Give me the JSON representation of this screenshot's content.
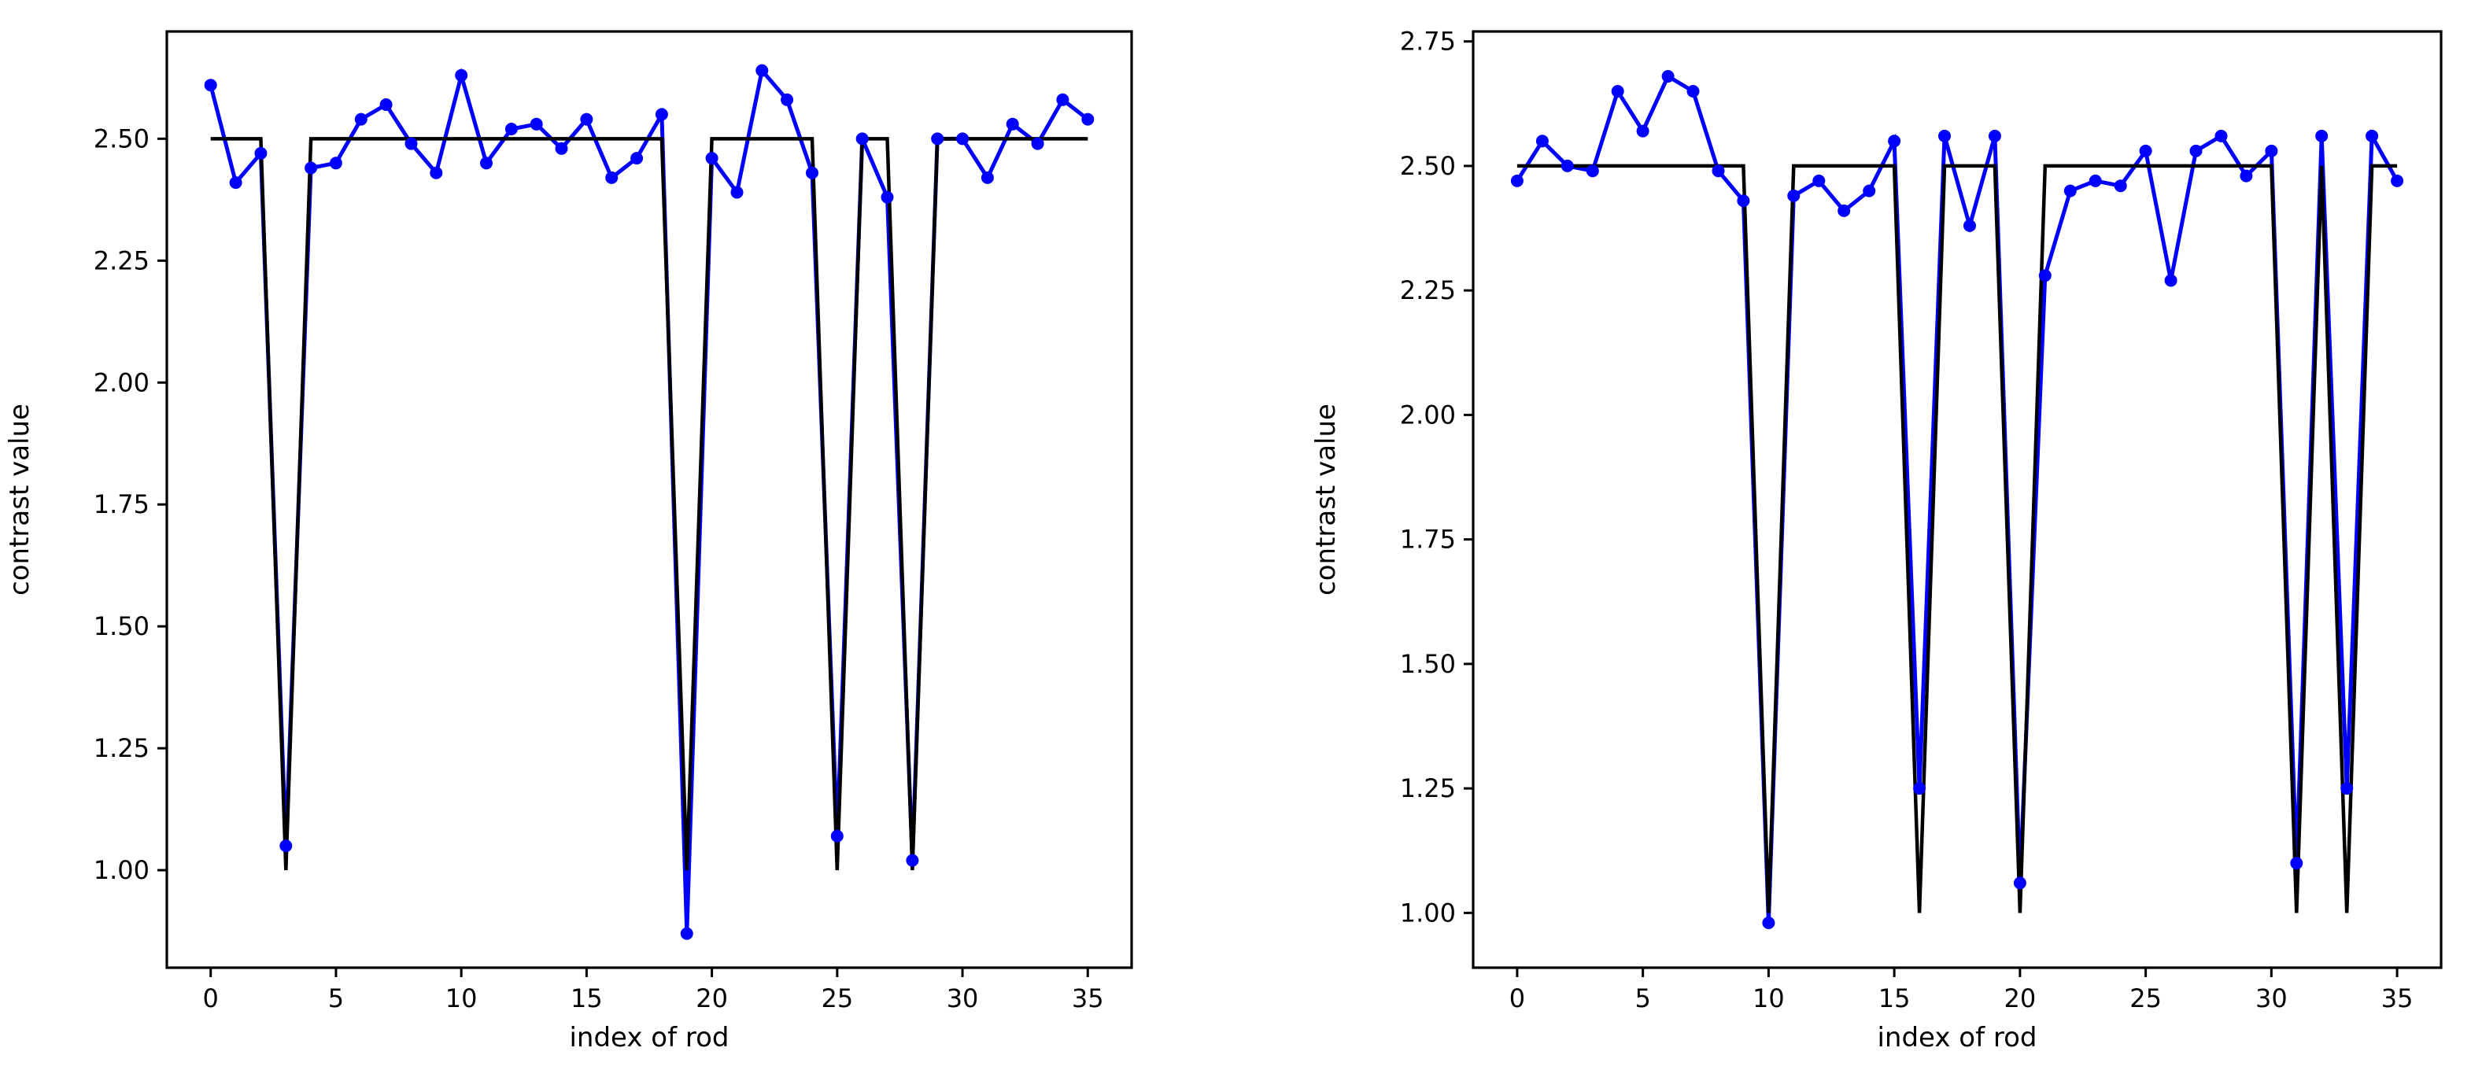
{
  "chart_data": [
    {
      "type": "line",
      "title": "",
      "xlabel": "index of rod",
      "ylabel": "contrast value",
      "xlim": [
        -1.75,
        36.75
      ],
      "ylim": [
        0.8,
        2.72
      ],
      "xticks": [
        0,
        5,
        10,
        15,
        20,
        25,
        30,
        35
      ],
      "xtick_labels": [
        "0",
        "5",
        "10",
        "15",
        "20",
        "25",
        "30",
        "35"
      ],
      "yticks": [
        1.0,
        1.25,
        1.5,
        1.75,
        2.0,
        2.25,
        2.5
      ],
      "ytick_labels": [
        "1.00",
        "1.25",
        "1.50",
        "1.75",
        "2.00",
        "2.25",
        "2.50"
      ],
      "grid": false,
      "legend": "none",
      "x": [
        0,
        1,
        2,
        3,
        4,
        5,
        6,
        7,
        8,
        9,
        10,
        11,
        12,
        13,
        14,
        15,
        16,
        17,
        18,
        19,
        20,
        21,
        22,
        23,
        24,
        25,
        26,
        27,
        28,
        29,
        30,
        31,
        32,
        33,
        34,
        35
      ],
      "series": [
        {
          "color": "#0000ff",
          "marker": "circle",
          "values": [
            2.61,
            2.41,
            2.47,
            1.05,
            2.44,
            2.45,
            2.54,
            2.57,
            2.49,
            2.43,
            2.63,
            2.45,
            2.52,
            2.53,
            2.48,
            2.54,
            2.42,
            2.46,
            2.55,
            0.87,
            2.46,
            2.39,
            2.64,
            2.58,
            2.43,
            1.07,
            2.5,
            2.38,
            1.02,
            2.5,
            2.5,
            2.42,
            2.53,
            2.49,
            2.58,
            2.54
          ]
        },
        {
          "color": "#000000",
          "marker": "none",
          "values": [
            2.5,
            2.5,
            2.5,
            1.0,
            2.5,
            2.5,
            2.5,
            2.5,
            2.5,
            2.5,
            2.5,
            2.5,
            2.5,
            2.5,
            2.5,
            2.5,
            2.5,
            2.5,
            2.5,
            1.0,
            2.5,
            2.5,
            2.5,
            2.5,
            2.5,
            1.0,
            2.5,
            2.5,
            1.0,
            2.5,
            2.5,
            2.5,
            2.5,
            2.5,
            2.5,
            2.5
          ]
        }
      ]
    },
    {
      "type": "line",
      "title": "",
      "xlabel": "index of rod",
      "ylabel": "contrast value",
      "xlim": [
        -1.75,
        36.75
      ],
      "ylim": [
        0.89,
        2.77
      ],
      "xticks": [
        0,
        5,
        10,
        15,
        20,
        25,
        30,
        35
      ],
      "xtick_labels": [
        "0",
        "5",
        "10",
        "15",
        "20",
        "25",
        "30",
        "35"
      ],
      "yticks": [
        1.0,
        1.25,
        1.5,
        1.75,
        2.0,
        2.25,
        2.5,
        2.75
      ],
      "ytick_labels": [
        "1.00",
        "1.25",
        "1.50",
        "1.75",
        "2.00",
        "2.25",
        "2.50",
        "2.75"
      ],
      "grid": false,
      "legend": "none",
      "x": [
        0,
        1,
        2,
        3,
        4,
        5,
        6,
        7,
        8,
        9,
        10,
        11,
        12,
        13,
        14,
        15,
        16,
        17,
        18,
        19,
        20,
        21,
        22,
        23,
        24,
        25,
        26,
        27,
        28,
        29,
        30,
        31,
        32,
        33,
        34,
        35
      ],
      "series": [
        {
          "color": "#0000ff",
          "marker": "circle",
          "values": [
            2.47,
            2.55,
            2.5,
            2.49,
            2.65,
            2.57,
            2.68,
            2.65,
            2.49,
            2.43,
            0.98,
            2.44,
            2.47,
            2.41,
            2.45,
            2.55,
            1.25,
            2.56,
            2.38,
            2.56,
            1.06,
            2.28,
            2.45,
            2.47,
            2.46,
            2.53,
            2.27,
            2.53,
            2.56,
            2.48,
            2.53,
            1.1,
            2.56,
            1.25,
            2.56,
            2.47
          ]
        },
        {
          "color": "#000000",
          "marker": "none",
          "values": [
            2.5,
            2.5,
            2.5,
            2.5,
            2.5,
            2.5,
            2.5,
            2.5,
            2.5,
            2.5,
            1.0,
            2.5,
            2.5,
            2.5,
            2.5,
            2.5,
            1.0,
            2.5,
            2.5,
            2.5,
            1.0,
            2.5,
            2.5,
            2.5,
            2.5,
            2.5,
            2.5,
            2.5,
            2.5,
            2.5,
            2.5,
            1.0,
            2.5,
            1.0,
            2.5,
            2.5
          ]
        }
      ]
    }
  ]
}
